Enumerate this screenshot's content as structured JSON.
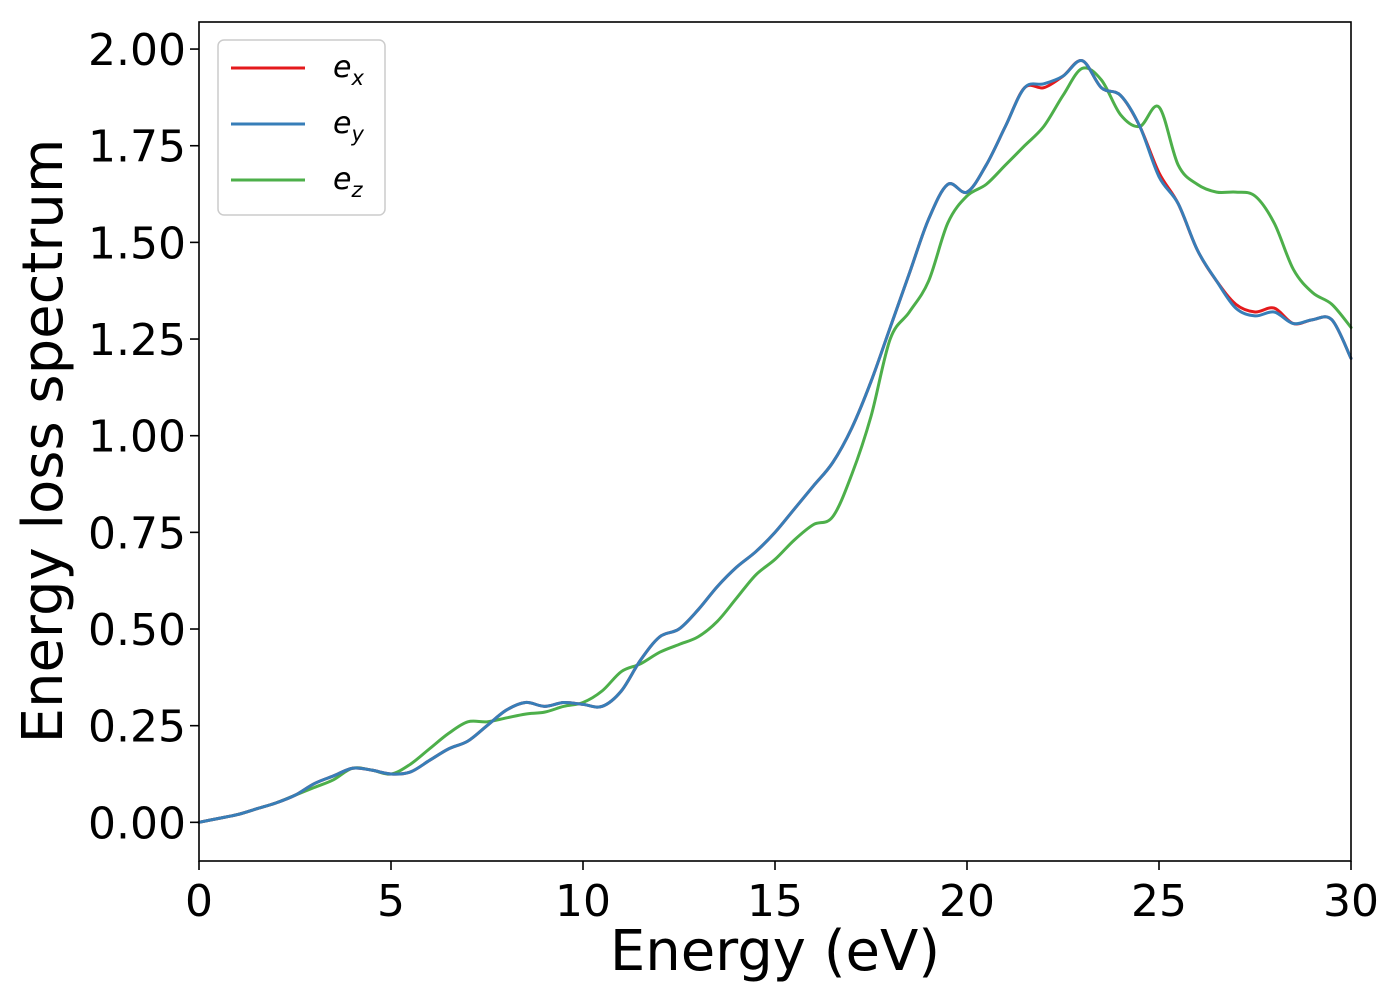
{
  "chart_data": {
    "type": "line",
    "title": "",
    "xlabel": "Energy (eV)",
    "ylabel": "Energy loss spectrum",
    "xlim": [
      0,
      30
    ],
    "ylim": [
      -0.1,
      2.07
    ],
    "xticks": [
      0,
      5,
      10,
      15,
      20,
      25,
      30
    ],
    "xtick_labels": [
      "0",
      "5",
      "10",
      "15",
      "20",
      "25",
      "30"
    ],
    "yticks": [
      0,
      0.25,
      0.5,
      0.75,
      1.0,
      1.25,
      1.5,
      1.75,
      2.0
    ],
    "ytick_labels": [
      "0.00",
      "0.25",
      "0.50",
      "0.75",
      "1.00",
      "1.25",
      "1.50",
      "1.75",
      "2.00"
    ],
    "grid": false,
    "legend_position": "top-left",
    "series": [
      {
        "name": "e_x",
        "label_main": "e",
        "label_sub": "x",
        "color": "#e41a1c",
        "x": [
          0,
          0.5,
          1,
          1.5,
          2,
          2.5,
          3,
          3.5,
          4,
          4.5,
          5,
          5.5,
          6,
          6.5,
          7,
          7.5,
          8,
          8.5,
          9,
          9.5,
          10,
          10.5,
          11,
          11.5,
          12,
          12.5,
          13,
          13.5,
          14,
          14.5,
          15,
          15.5,
          16,
          16.5,
          17,
          17.5,
          18,
          18.5,
          19,
          19.5,
          20,
          20.5,
          21,
          21.5,
          22,
          22.5,
          23,
          23.5,
          24,
          24.5,
          25,
          25.5,
          26,
          26.5,
          27,
          27.5,
          28,
          28.5,
          29,
          29.5,
          30
        ],
        "y": [
          0.0,
          0.01,
          0.02,
          0.035,
          0.05,
          0.07,
          0.1,
          0.12,
          0.14,
          0.135,
          0.125,
          0.13,
          0.16,
          0.19,
          0.21,
          0.25,
          0.29,
          0.31,
          0.3,
          0.31,
          0.305,
          0.3,
          0.34,
          0.42,
          0.48,
          0.5,
          0.55,
          0.61,
          0.66,
          0.7,
          0.75,
          0.81,
          0.87,
          0.93,
          1.02,
          1.14,
          1.28,
          1.42,
          1.56,
          1.65,
          1.63,
          1.7,
          1.8,
          1.9,
          1.9,
          1.93,
          1.97,
          1.9,
          1.88,
          1.8,
          1.68,
          1.6,
          1.48,
          1.4,
          1.34,
          1.32,
          1.33,
          1.29,
          1.3,
          1.3,
          1.2
        ]
      },
      {
        "name": "e_y",
        "label_main": "e",
        "label_sub": "y",
        "color": "#377eb8",
        "x": [
          0,
          0.5,
          1,
          1.5,
          2,
          2.5,
          3,
          3.5,
          4,
          4.5,
          5,
          5.5,
          6,
          6.5,
          7,
          7.5,
          8,
          8.5,
          9,
          9.5,
          10,
          10.5,
          11,
          11.5,
          12,
          12.5,
          13,
          13.5,
          14,
          14.5,
          15,
          15.5,
          16,
          16.5,
          17,
          17.5,
          18,
          18.5,
          19,
          19.5,
          20,
          20.5,
          21,
          21.5,
          22,
          22.5,
          23,
          23.5,
          24,
          24.5,
          25,
          25.5,
          26,
          26.5,
          27,
          27.5,
          28,
          28.5,
          29,
          29.5,
          30
        ],
        "y": [
          0.0,
          0.01,
          0.02,
          0.035,
          0.05,
          0.07,
          0.1,
          0.12,
          0.14,
          0.135,
          0.125,
          0.13,
          0.16,
          0.19,
          0.21,
          0.25,
          0.29,
          0.31,
          0.3,
          0.31,
          0.305,
          0.3,
          0.34,
          0.42,
          0.48,
          0.5,
          0.55,
          0.61,
          0.66,
          0.7,
          0.75,
          0.81,
          0.87,
          0.93,
          1.02,
          1.14,
          1.28,
          1.42,
          1.56,
          1.65,
          1.63,
          1.7,
          1.8,
          1.9,
          1.91,
          1.93,
          1.97,
          1.9,
          1.88,
          1.8,
          1.67,
          1.6,
          1.48,
          1.4,
          1.33,
          1.31,
          1.32,
          1.29,
          1.3,
          1.3,
          1.2
        ]
      },
      {
        "name": "e_z",
        "label_main": "e",
        "label_sub": "z",
        "color": "#4daf4a",
        "x": [
          0,
          0.5,
          1,
          1.5,
          2,
          2.5,
          3,
          3.5,
          4,
          4.5,
          5,
          5.5,
          6,
          6.5,
          7,
          7.5,
          8,
          8.5,
          9,
          9.5,
          10,
          10.5,
          11,
          11.5,
          12,
          12.5,
          13,
          13.5,
          14,
          14.5,
          15,
          15.5,
          16,
          16.5,
          17,
          17.5,
          18,
          18.5,
          19,
          19.5,
          20,
          20.5,
          21,
          21.5,
          22,
          22.5,
          23,
          23.5,
          24,
          24.5,
          25,
          25.5,
          26,
          26.5,
          27,
          27.5,
          28,
          28.5,
          29,
          29.5,
          30
        ],
        "y": [
          0.0,
          0.01,
          0.02,
          0.035,
          0.05,
          0.07,
          0.09,
          0.11,
          0.14,
          0.135,
          0.125,
          0.15,
          0.19,
          0.23,
          0.26,
          0.26,
          0.27,
          0.28,
          0.285,
          0.3,
          0.31,
          0.34,
          0.39,
          0.41,
          0.44,
          0.46,
          0.48,
          0.52,
          0.58,
          0.64,
          0.68,
          0.73,
          0.77,
          0.79,
          0.9,
          1.05,
          1.25,
          1.32,
          1.4,
          1.55,
          1.62,
          1.65,
          1.7,
          1.75,
          1.8,
          1.88,
          1.95,
          1.92,
          1.83,
          1.8,
          1.85,
          1.7,
          1.65,
          1.63,
          1.63,
          1.62,
          1.55,
          1.43,
          1.37,
          1.34,
          1.28
        ]
      }
    ]
  }
}
